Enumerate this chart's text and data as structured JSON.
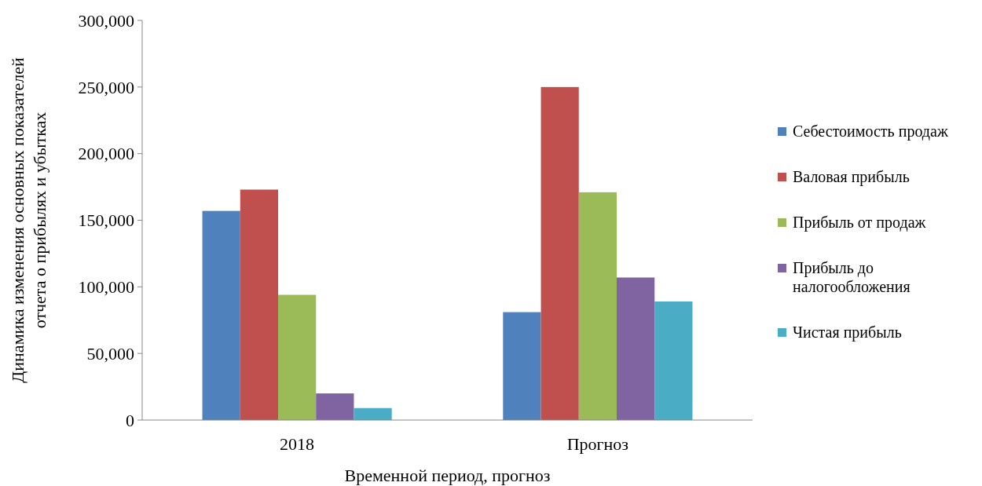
{
  "chart_data": {
    "type": "bar",
    "xlabel": "Временной период, прогноз",
    "ylabel": "Динамика изменения основных показателей\nотчета о прибылях и убытках",
    "categories": [
      "2018",
      "Прогноз"
    ],
    "series": [
      {
        "name": "Себестоимость продаж",
        "color": "#4f81bd",
        "values": [
          157000,
          81000
        ]
      },
      {
        "name": "Валовая прибыль",
        "color": "#c0504d",
        "values": [
          173000,
          250000
        ]
      },
      {
        "name": "Прибыль от продаж",
        "color": "#9bbb59",
        "values": [
          94000,
          171000
        ]
      },
      {
        "name": "Прибыль до налогообложения",
        "color": "#8064a2",
        "values": [
          20000,
          107000
        ]
      },
      {
        "name": "Чистая прибыль",
        "color": "#4bacc6",
        "values": [
          9000,
          89000
        ]
      }
    ],
    "ylim": [
      0,
      300000
    ],
    "yticks": [
      {
        "value": 0,
        "label": "0"
      },
      {
        "value": 50000,
        "label": "50,000"
      },
      {
        "value": 100000,
        "label": "100,000"
      },
      {
        "value": 150000,
        "label": "150,000"
      },
      {
        "value": 200000,
        "label": "200,000"
      },
      {
        "value": 250000,
        "label": "250,000"
      },
      {
        "value": 300000,
        "label": "300,000"
      }
    ],
    "grid": false,
    "legend": "right"
  }
}
